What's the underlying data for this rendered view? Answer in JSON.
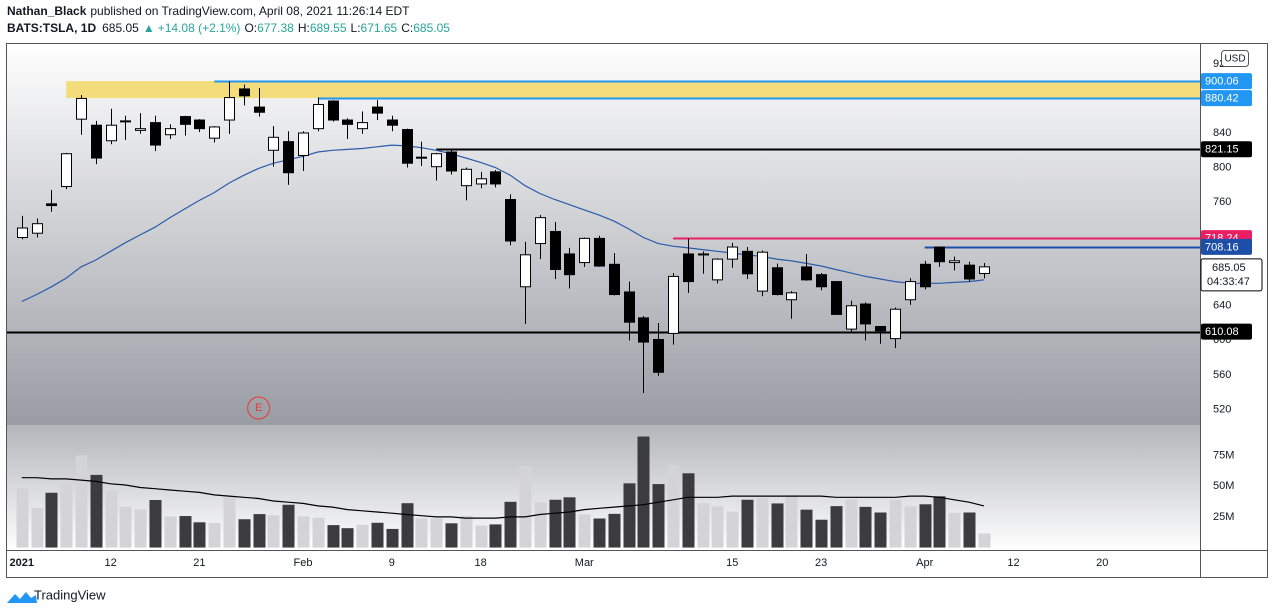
{
  "header": {
    "author": "Nathan_Black",
    "published": "published on TradingView.com, April 08, 2021 11:26:14 EDT",
    "symbol": "BATS:TSLA, 1D",
    "last": 685.05,
    "arrow": "▲",
    "change": "+14.08 (+2.1%)",
    "quote": [
      {
        "label": "O:",
        "value": 677.38
      },
      {
        "label": "H:",
        "value": 689.55
      },
      {
        "label": "L:",
        "value": 671.65
      },
      {
        "label": "C:",
        "value": 685.05
      }
    ]
  },
  "footer": {
    "brand": "TradingView"
  },
  "chart_data": {
    "type": "candlestick",
    "currency": "USD",
    "up_color": "#ffffff",
    "down_color": "#000000",
    "wick_color": "#000000",
    "xlim": [
      -1,
      79.6
    ],
    "ylim": [
      502,
      943
    ],
    "grid": false,
    "yticks": [
      520,
      560,
      600,
      640,
      760,
      800,
      840,
      920
    ],
    "xticks": [
      {
        "value": 0,
        "label": "2021"
      },
      {
        "value": 6,
        "label": "12"
      },
      {
        "value": 12,
        "label": "21"
      },
      {
        "value": 19,
        "label": "Feb"
      },
      {
        "value": 25,
        "label": "9"
      },
      {
        "value": 31,
        "label": "18"
      },
      {
        "value": 38,
        "label": "Mar"
      },
      {
        "value": 48,
        "label": "15"
      },
      {
        "value": 54,
        "label": "23"
      },
      {
        "value": 61,
        "label": "Apr"
      },
      {
        "value": 67,
        "label": "12"
      },
      {
        "value": 73,
        "label": "20"
      }
    ],
    "open": [
      719,
      724,
      758,
      778,
      856,
      849,
      831,
      853,
      843,
      852,
      838,
      859,
      855,
      834,
      855,
      891,
      870,
      820,
      830,
      814,
      845,
      877,
      855,
      845,
      870,
      855,
      844,
      812,
      801,
      818,
      779,
      781,
      795,
      763,
      662,
      712,
      726,
      700,
      690,
      718,
      688,
      656,
      626,
      601,
      608,
      700,
      699,
      670,
      694,
      703,
      657,
      684,
      647,
      685,
      676,
      668,
      613,
      642,
      616,
      602,
      647,
      688,
      708,
      690,
      687,
      677.38
    ],
    "high": [
      744,
      741,
      774,
      817,
      884,
      854,
      868,
      860,
      863,
      860,
      850,
      860,
      856,
      848,
      900,
      896,
      892,
      848,
      842,
      842,
      881,
      878,
      857,
      865,
      878,
      860,
      845,
      830,
      817,
      821,
      800,
      795,
      797,
      769,
      714,
      745,
      737,
      707,
      719,
      721,
      701,
      668,
      628,
      620,
      678,
      718,
      703,
      695,
      713,
      708,
      704,
      689,
      657,
      700,
      678,
      668,
      646,
      644,
      616,
      638,
      672,
      692,
      708,
      697,
      691,
      689.55
    ],
    "low": [
      717,
      719,
      749,
      775,
      838,
      804,
      827,
      832,
      839,
      819,
      833,
      837,
      841,
      829,
      839,
      872,
      859,
      801,
      780,
      796,
      842,
      853,
      833,
      839,
      855,
      842,
      800,
      802,
      785,
      792,
      762,
      776,
      777,
      710,
      619,
      694,
      671,
      660,
      685,
      685,
      652,
      600,
      539,
      559,
      595,
      655,
      677,
      666,
      684,
      671,
      651,
      652,
      625,
      669,
      658,
      630,
      610,
      600,
      596,
      591,
      641,
      659,
      685,
      681,
      668,
      671.65
    ],
    "close": [
      730,
      735,
      756,
      816,
      880,
      811,
      849,
      854,
      845,
      826,
      845,
      850,
      845,
      847,
      881,
      883,
      864,
      835,
      794,
      840,
      873,
      855,
      850,
      852,
      863,
      849,
      805,
      812,
      816,
      796,
      798,
      787,
      781,
      715,
      699,
      742,
      682,
      676,
      718,
      686,
      653,
      621,
      598,
      563,
      674,
      668,
      700,
      694,
      708,
      677,
      702,
      653,
      655,
      670,
      662,
      630,
      640,
      619,
      611,
      636,
      668,
      662,
      691,
      692,
      671,
      685.05
    ],
    "ma": {
      "color": "#2a5caa",
      "values": [
        645,
        653,
        662,
        672,
        685,
        693,
        703,
        713,
        722,
        731,
        742,
        752,
        762,
        771,
        782,
        791,
        799,
        805,
        809,
        813,
        818,
        820,
        821,
        822,
        824,
        826,
        825,
        823,
        820,
        816,
        811,
        806,
        800,
        791,
        779,
        770,
        763,
        757,
        751,
        745,
        738,
        729,
        719,
        712,
        709,
        707,
        705,
        703,
        701,
        699,
        697,
        694,
        692,
        689,
        686,
        682,
        678,
        674,
        671,
        668,
        666,
        666,
        666,
        667,
        668,
        670
      ]
    },
    "zone": {
      "low": 880.42,
      "high": 900.06,
      "start": 3,
      "color": "#f3dc7a"
    },
    "levels": [
      {
        "value": 900.06,
        "color": "#2196f3",
        "start": 13
      },
      {
        "value": 880.42,
        "color": "#2196f3",
        "start": 20
      },
      {
        "value": 821.15,
        "color": "#000000",
        "start": 28
      },
      {
        "value": 718.24,
        "color": "#e91e63",
        "start": 44
      },
      {
        "value": 708.16,
        "color": "#1e4fa8",
        "start": 61
      },
      {
        "value": 610.08,
        "color": "#000000",
        "start": -1
      }
    ],
    "price_label": {
      "value": 685.05,
      "countdown": "04:33:47"
    },
    "earnings": {
      "label": "E",
      "index": 16,
      "color": "#e53935"
    },
    "volume": {
      "ylim": [
        -2,
        100
      ],
      "up_color": "#d4d4d6",
      "down_color": "#3c3c3e",
      "yticks": [
        {
          "value": 25,
          "label": "25M"
        },
        {
          "value": 50,
          "label": "50M"
        },
        {
          "value": 75,
          "label": "75M"
        }
      ],
      "values": [
        48.6,
        32.2,
        44.7,
        51.5,
        75.1,
        59.3,
        46.3,
        33.3,
        31.3,
        38.8,
        25.4,
        25.7,
        20.6,
        20.1,
        41.2,
        23.1,
        27.3,
        26.4,
        34.9,
        25.4,
        24.3,
        18.3,
        15.8,
        18.6,
        20.2,
        15.2,
        36.2,
        23.8,
        23.8,
        19.8,
        25.9,
        17.9,
        18.9,
        37.3,
        66.6,
        36.8,
        39.0,
        41.0,
        27.1,
        23.7,
        27.5,
        52.4,
        90.6,
        51.8,
        67.5,
        60.6,
        36.3,
        33.6,
        29.4,
        39.0,
        40.4,
        36.0,
        42.8,
        30.9,
        22.7,
        33.8,
        39.2,
        33.2,
        28.6,
        39.0,
        33.6,
        35.3,
        41.8,
        28.3,
        28.6,
        11.5
      ],
      "ma": {
        "color": "#000000",
        "values": [
          57,
          57,
          56,
          56,
          55,
          54,
          52,
          51,
          49,
          48,
          47,
          46,
          45,
          43,
          42,
          41,
          40,
          38,
          37,
          36,
          34,
          33,
          31,
          30,
          29,
          28,
          27,
          26,
          25,
          25,
          24,
          24,
          24,
          25,
          25,
          27,
          28,
          29,
          31,
          32,
          33,
          34,
          35,
          37,
          39,
          41,
          41,
          41,
          42,
          42,
          42,
          42,
          42,
          42,
          42,
          41,
          41,
          41,
          41,
          41,
          42,
          42,
          41,
          39,
          37,
          34
        ]
      }
    }
  }
}
